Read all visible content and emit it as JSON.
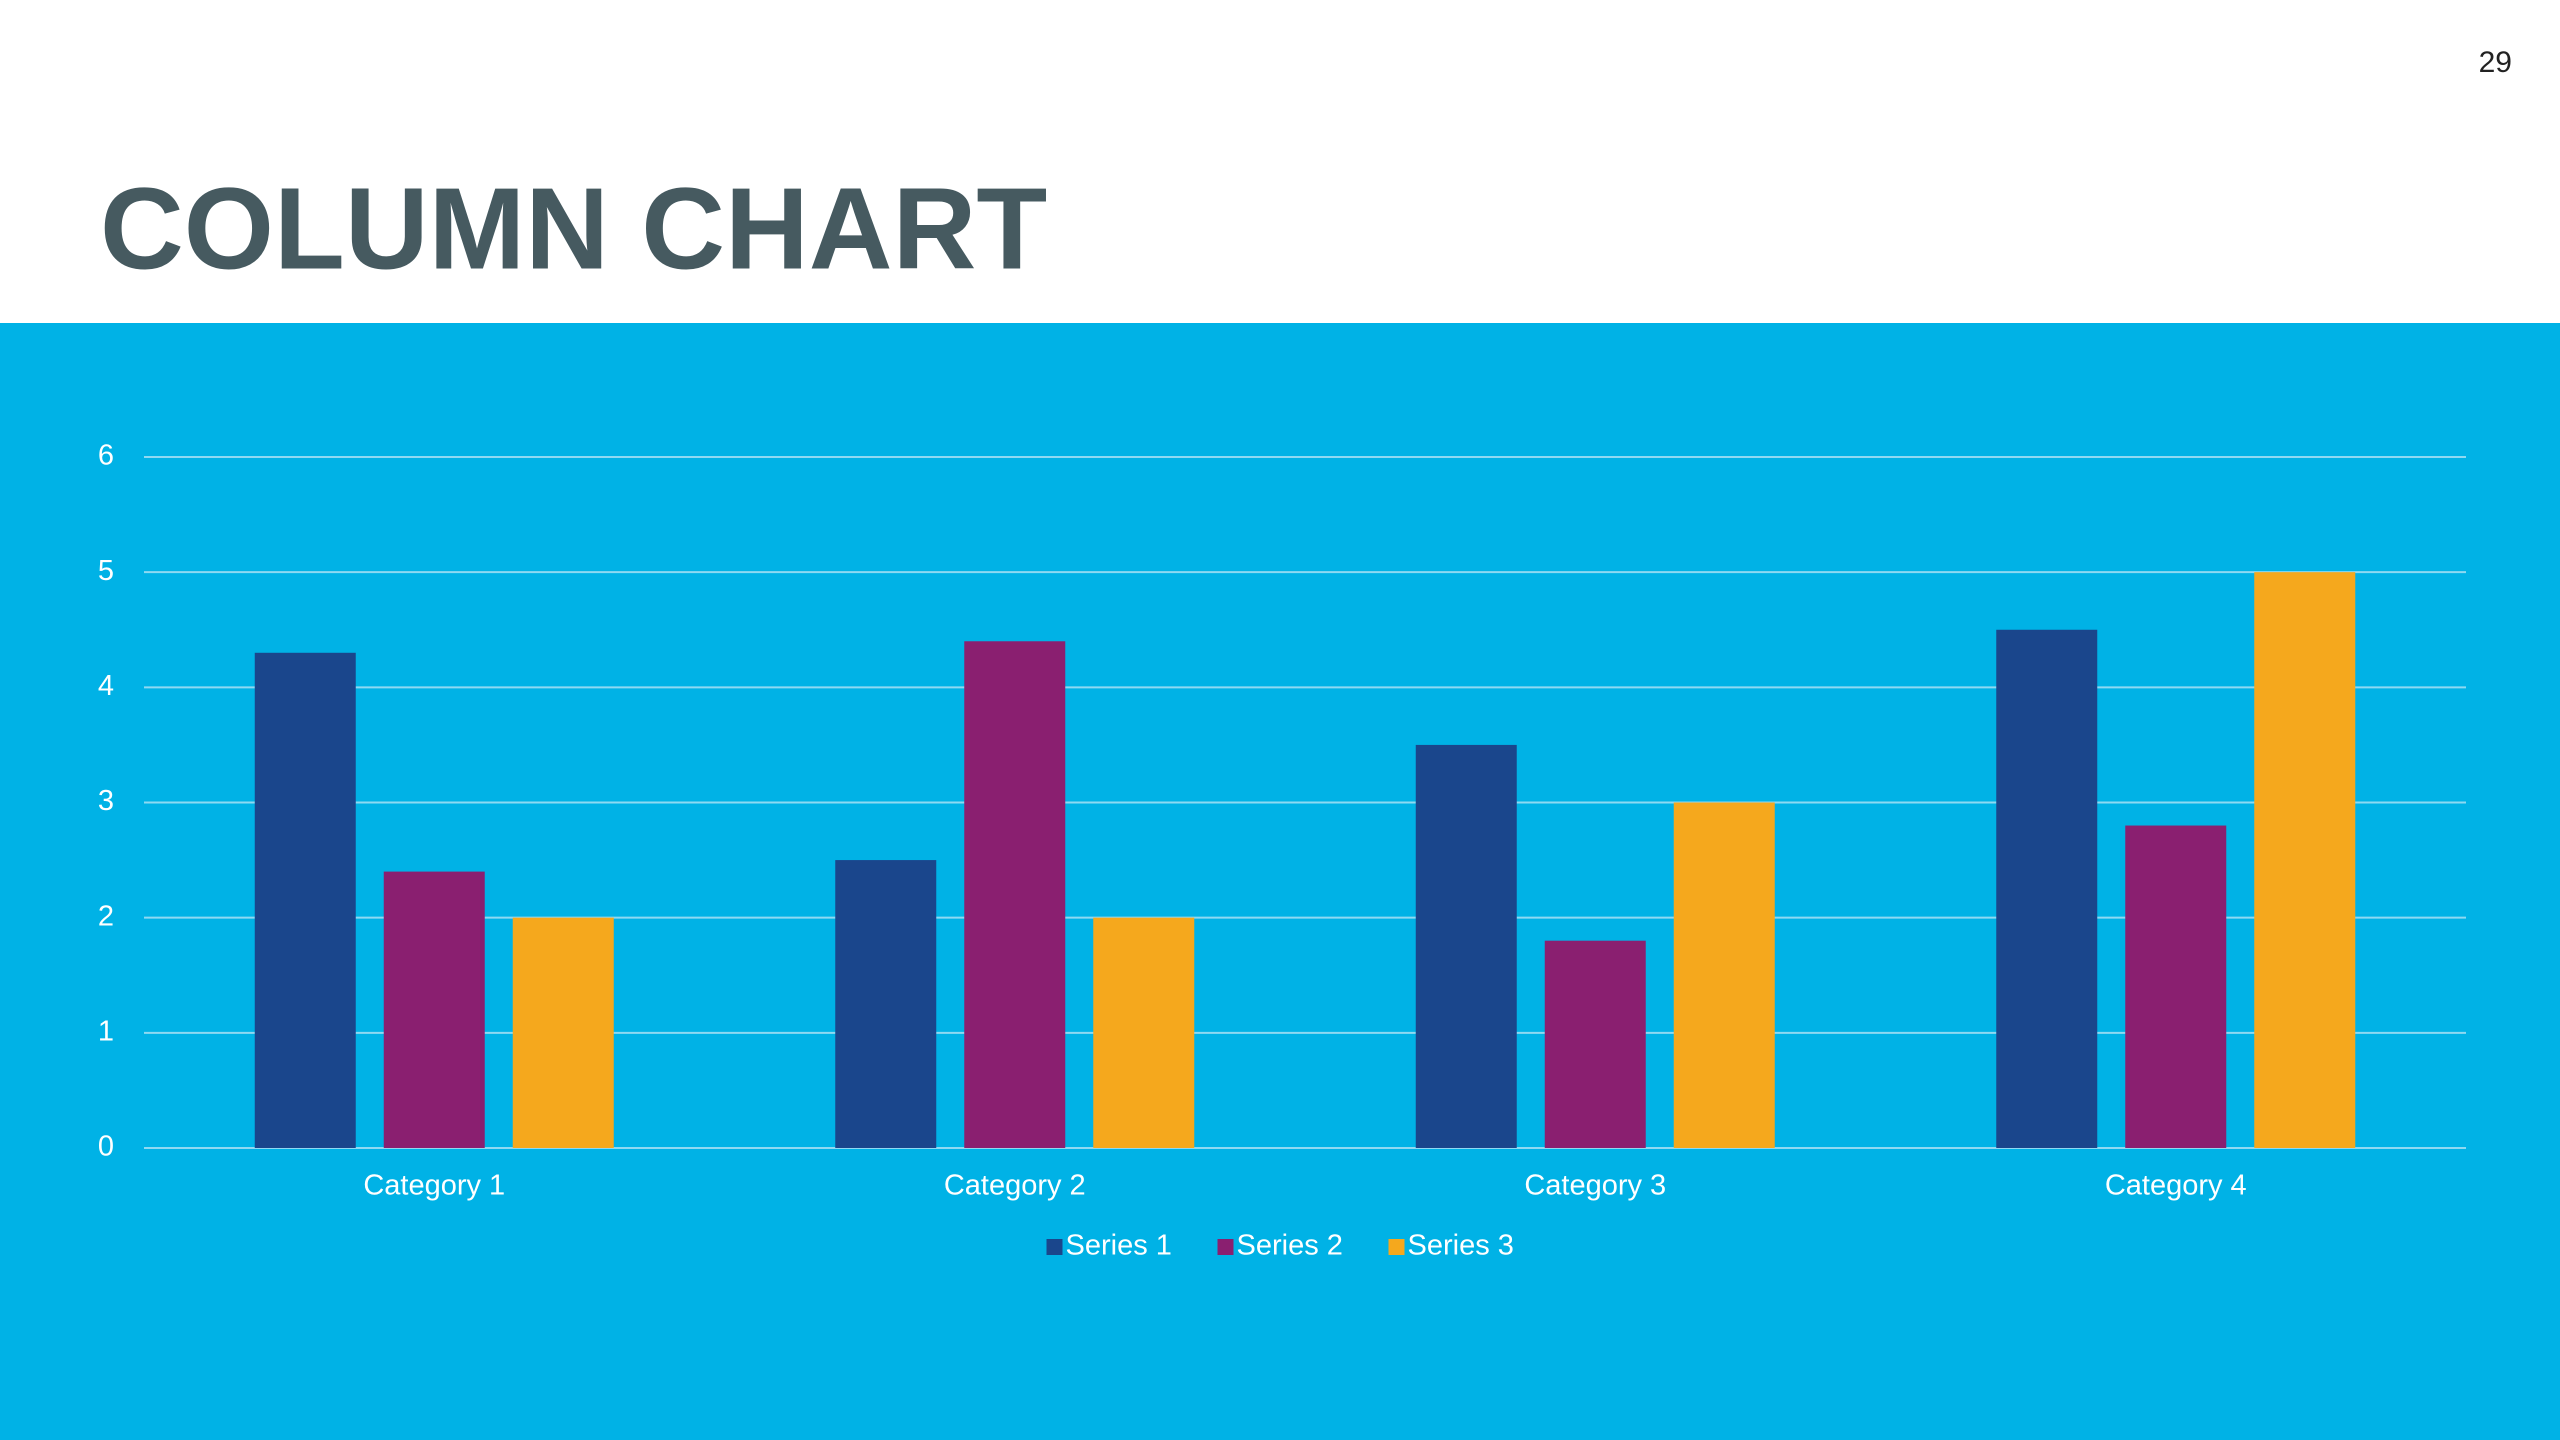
{
  "page_number": "29",
  "chart_data": {
    "type": "bar",
    "title": "COLUMN CHART",
    "categories": [
      "Category 1",
      "Category 2",
      "Category 3",
      "Category 4"
    ],
    "series": [
      {
        "name": "Series 1",
        "color": "#1a468c",
        "values": [
          4.3,
          2.5,
          3.5,
          4.5
        ]
      },
      {
        "name": "Series 2",
        "color": "#8a1f70",
        "values": [
          2.4,
          4.4,
          1.8,
          2.8
        ]
      },
      {
        "name": "Series 3",
        "color": "#f5a81d",
        "values": [
          2,
          2,
          3,
          5
        ]
      }
    ],
    "ylim": [
      0,
      6
    ],
    "yticks": [
      0,
      1,
      2,
      3,
      4,
      5,
      6
    ],
    "grid": true,
    "legend": "bottom"
  }
}
